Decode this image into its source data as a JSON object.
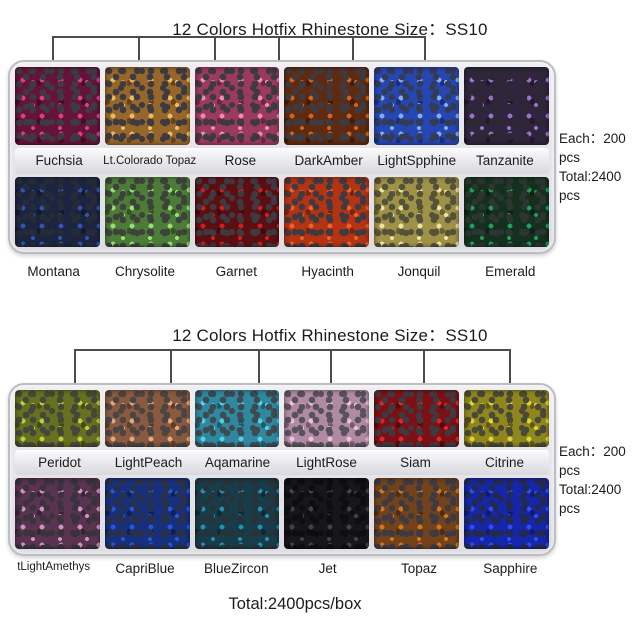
{
  "page": {
    "background": "#ffffff",
    "text_color": "#1b1b1b",
    "bottom_total": "Total:2400pcs/box"
  },
  "boxes": [
    {
      "title": "12 Colors Hotfix Rhinestone  Size：SS10",
      "side_note_lines": [
        "Each：200",
        "pcs",
        "Total:2400",
        "pcs"
      ],
      "row1": [
        {
          "name": "Fuchsia",
          "base": "#64143a",
          "glint": "#e23a8c",
          "back": "#3d3a42"
        },
        {
          "name": "Lt.Colorado Topaz",
          "base": "#96662a",
          "glint": "#ecbc62",
          "back": "#3d3a42"
        },
        {
          "name": "Rose",
          "base": "#9c3a5e",
          "glint": "#f08ab8",
          "back": "#3d3a42"
        },
        {
          "name": "DarkAmber",
          "base": "#5e2a10",
          "glint": "#d4641a",
          "back": "#3d3a42"
        },
        {
          "name": "LightSpphine",
          "base": "#2646b4",
          "glint": "#84acf0",
          "back": "#343b54"
        },
        {
          "name": "Tanzanite",
          "base": "#31243e",
          "glint": "#9a72c8",
          "back": "#2c2833"
        }
      ],
      "row2": [
        {
          "name": "Montana",
          "base": "#1c2440",
          "glint": "#2f55b4",
          "back": "#262b38"
        },
        {
          "name": "Chrysolite",
          "base": "#4c7c38",
          "glint": "#9ade76",
          "back": "#3d423a"
        },
        {
          "name": "Garnet",
          "base": "#5c0f12",
          "glint": "#ce2020",
          "back": "#3d3a42"
        },
        {
          "name": "Hyacinth",
          "base": "#b43312",
          "glint": "#f0612a",
          "back": "#3d3a42"
        },
        {
          "name": "Jonquil",
          "base": "#9e9148",
          "glint": "#eee4a0",
          "back": "#55523a"
        },
        {
          "name": "Emerald",
          "base": "#15301f",
          "glint": "#1f9e5e",
          "back": "#2c3530"
        }
      ]
    },
    {
      "title": "12 Colors Hotfix Rhinestone  Size：SS10",
      "side_note_lines": [
        "Each：200",
        "pcs",
        "Total:2400",
        "pcs"
      ],
      "row1": [
        {
          "name": "Peridot",
          "base": "#66701e",
          "glint": "#bcce42",
          "back": "#44483a"
        },
        {
          "name": "LightPeach",
          "base": "#8a5a40",
          "glint": "#e2aa80",
          "back": "#4a4442"
        },
        {
          "name": "Aqamarine",
          "base": "#2f87a0",
          "glint": "#56d0e4",
          "back": "#3d4a50"
        },
        {
          "name": "LightRose",
          "base": "#b08aa2",
          "glint": "#ecc0da",
          "back": "#5a525a"
        },
        {
          "name": "Siam",
          "base": "#7c1014",
          "glint": "#d82a2a",
          "back": "#3d3a42"
        },
        {
          "name": "Citrine",
          "base": "#8f861e",
          "glint": "#e0d430",
          "back": "#4a4836"
        }
      ],
      "row2": [
        {
          "name": "tLightAmethys",
          "base": "#5a3350",
          "glint": "#cc94c4",
          "back": "#3a333d"
        },
        {
          "name": "CapriBlue",
          "base": "#16307e",
          "glint": "#2458d8",
          "back": "#28304a"
        },
        {
          "name": "BlueZircon",
          "base": "#173c4a",
          "glint": "#2390b0",
          "back": "#26343a"
        },
        {
          "name": "Jet",
          "base": "#17171b",
          "glint": "#42424e",
          "back": "#0e0e12"
        },
        {
          "name": "Topaz",
          "base": "#74421a",
          "glint": "#d07820",
          "back": "#3d3a42"
        },
        {
          "name": "Sapphire",
          "base": "#1626a8",
          "glint": "#2e4ef0",
          "back": "#222a50"
        }
      ]
    }
  ]
}
